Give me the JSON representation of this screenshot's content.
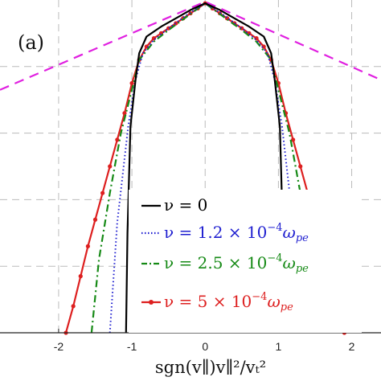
{
  "panel_label": "(a)",
  "colors": {
    "nu0": "#000000",
    "nu12": "#1f1fd0",
    "nu25": "#168a16",
    "nu5": "#dd1f1f",
    "reference": "#e020e0",
    "grid": "#bbbbbb"
  },
  "chart_data": {
    "type": "line",
    "xlabel": "sgn(v∥)v∥²/vₜ²",
    "ylabel": "",
    "xlim": [
      -2.8,
      2.4
    ],
    "ylim": [
      0,
      1
    ],
    "x_ticks": [
      "-2",
      "-1",
      "0",
      "1",
      "2"
    ],
    "grid": true,
    "legend_position": "lower-center",
    "series": [
      {
        "name": "ν = 0",
        "label_parts": [
          "ν = 0"
        ],
        "color": "#000000",
        "style": "solid",
        "x": [
          -1.08,
          -1.06,
          -1.02,
          -0.95,
          -0.9,
          -0.8,
          -0.6,
          -0.4,
          -0.2,
          0,
          0.2,
          0.4,
          0.6,
          0.8,
          0.9,
          0.95,
          1.02,
          1.06,
          1.08
        ],
        "y": [
          0.0,
          0.3,
          0.62,
          0.76,
          0.84,
          0.89,
          0.92,
          0.945,
          0.97,
          0.99,
          0.97,
          0.945,
          0.92,
          0.89,
          0.84,
          0.76,
          0.62,
          0.3,
          0.0
        ]
      },
      {
        "name": "ν = 1.2 × 10⁻⁴ ωpe",
        "label_parts": [
          "ν = 1.2 × 10",
          "−4",
          "ω",
          "pe"
        ],
        "color": "#1f1fd0",
        "style": "dotted",
        "x": [
          -1.3,
          -1.2,
          -1.05,
          -0.95,
          -0.85,
          -0.7,
          -0.5,
          -0.25,
          0,
          0.25,
          0.5,
          0.7,
          0.85,
          0.95,
          1.05,
          1.2,
          1.3
        ],
        "y": [
          0.0,
          0.33,
          0.62,
          0.76,
          0.84,
          0.88,
          0.915,
          0.955,
          0.99,
          0.955,
          0.915,
          0.88,
          0.84,
          0.76,
          0.62,
          0.33,
          0.0
        ]
      },
      {
        "name": "ν = 2.5 × 10⁻⁴ ωpe",
        "label_parts": [
          "ν = 2.5 × 10",
          "−4",
          "ω",
          "pe"
        ],
        "color": "#168a16",
        "style": "dashdot",
        "x": [
          -1.55,
          -1.45,
          -1.3,
          -1.15,
          -1.0,
          -0.9,
          -0.7,
          -0.5,
          -0.25,
          0,
          0.25,
          0.5,
          0.7,
          0.9,
          1.0,
          1.15,
          1.3,
          1.45,
          1.55
        ],
        "y": [
          0.0,
          0.22,
          0.42,
          0.6,
          0.73,
          0.82,
          0.875,
          0.91,
          0.95,
          0.99,
          0.95,
          0.91,
          0.875,
          0.82,
          0.73,
          0.6,
          0.42,
          0.22,
          0.0
        ]
      },
      {
        "name": "ν = 5 × 10⁻⁴ ωpe",
        "label_parts": [
          "ν = 5 × 10",
          "−4",
          "ω",
          "pe"
        ],
        "color": "#dd1f1f",
        "style": "solid-marker",
        "x": [
          -1.9,
          -1.8,
          -1.7,
          -1.6,
          -1.5,
          -1.4,
          -1.3,
          -1.2,
          -1.1,
          -1.0,
          -0.9,
          -0.8,
          -0.7,
          -0.6,
          -0.5,
          -0.4,
          -0.3,
          -0.2,
          -0.1,
          0,
          0.1,
          0.2,
          0.3,
          0.4,
          0.5,
          0.6,
          0.7,
          0.8,
          0.9,
          1.0,
          1.1,
          1.2,
          1.3,
          1.4,
          1.5,
          1.6,
          1.7,
          1.8,
          1.9
        ],
        "y": [
          0.0,
          0.08,
          0.17,
          0.26,
          0.34,
          0.42,
          0.5,
          0.58,
          0.66,
          0.75,
          0.82,
          0.86,
          0.885,
          0.9,
          0.915,
          0.93,
          0.945,
          0.96,
          0.975,
          0.99,
          0.975,
          0.96,
          0.945,
          0.93,
          0.915,
          0.9,
          0.885,
          0.86,
          0.82,
          0.75,
          0.66,
          0.58,
          0.5,
          0.42,
          0.34,
          0.26,
          0.17,
          0.08,
          0.0
        ]
      },
      {
        "color": "#e020e0",
        "style": "dashed",
        "x": [
          -2.8,
          0,
          2.4
        ],
        "y": [
          0.73,
          0.995,
          0.76
        ]
      }
    ]
  }
}
